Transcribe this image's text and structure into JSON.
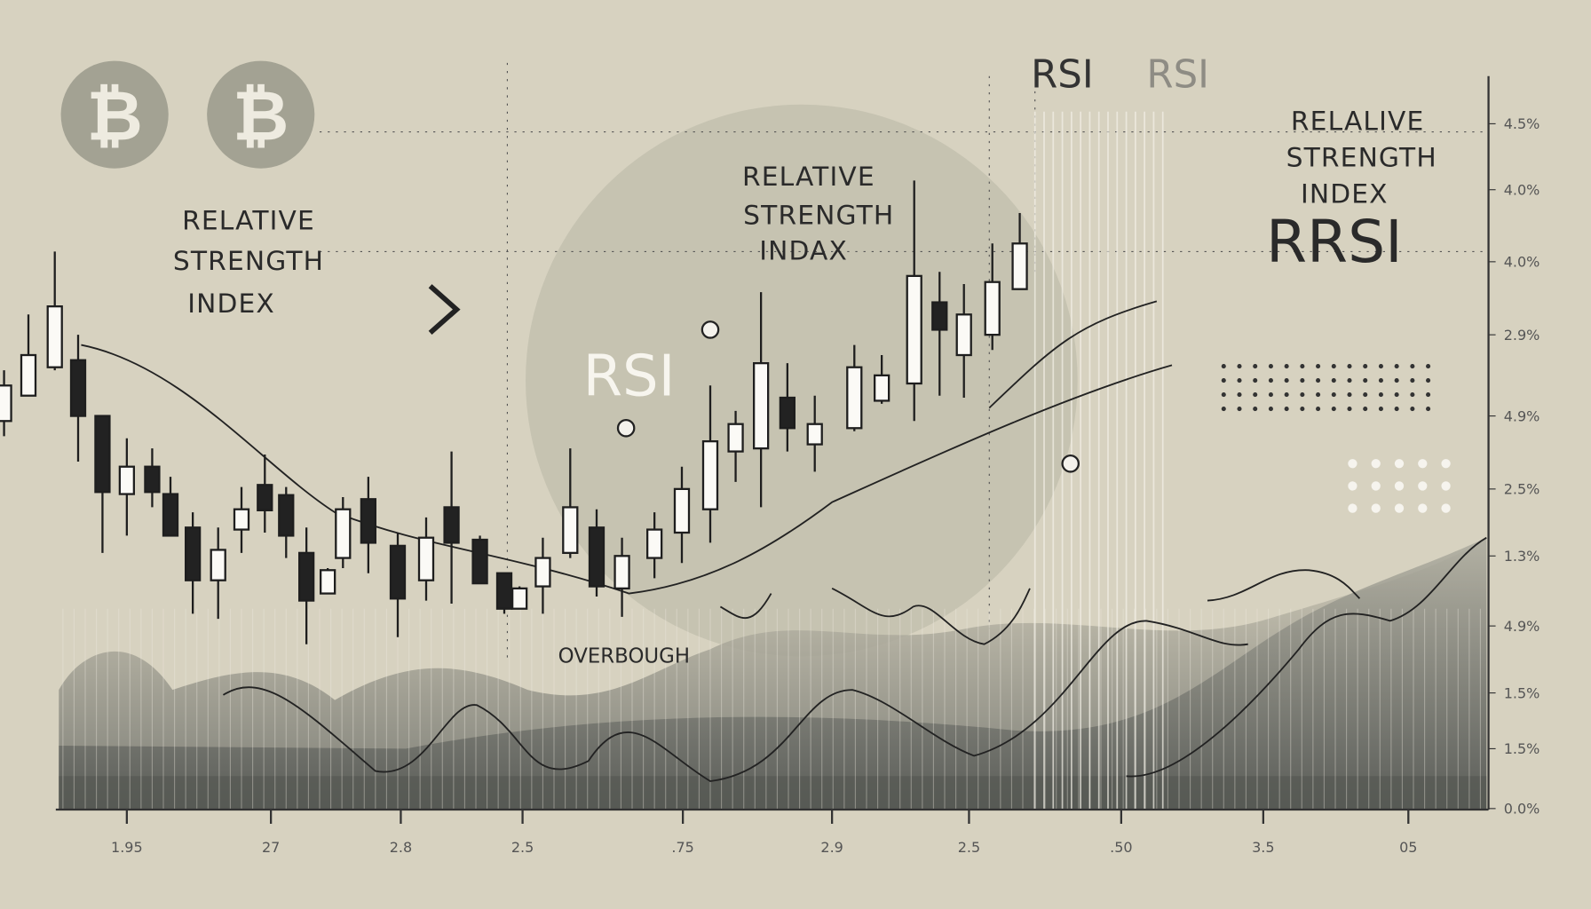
{
  "icons": [
    "₿",
    "₿"
  ],
  "top_titles": [
    "RSI",
    "RSI"
  ],
  "left_label": [
    "RELATIVE",
    "STRENGTH",
    "INDEX"
  ],
  "center_label": [
    "RELATIVE",
    "STRENGTH",
    "INDAX"
  ],
  "right_label": [
    "RELALIVE",
    "STRENGTH",
    "INDEX"
  ],
  "center_title": "RSI",
  "right_title": "RRSI",
  "annotation": "OVERBOUGH",
  "y_axis_labels": [
    "4.5%",
    "4.0%",
    "4.0%",
    "2.9%",
    "4.9%",
    "2.5%",
    "1.3%",
    "4.9%",
    "1.5%",
    "1.5%",
    "0.0%"
  ],
  "x_axis_labels": [
    "1.95",
    "27",
    "2.8",
    "2.5",
    ".75",
    "2.9",
    "2.5",
    ".50",
    "3.5",
    "05"
  ]
}
